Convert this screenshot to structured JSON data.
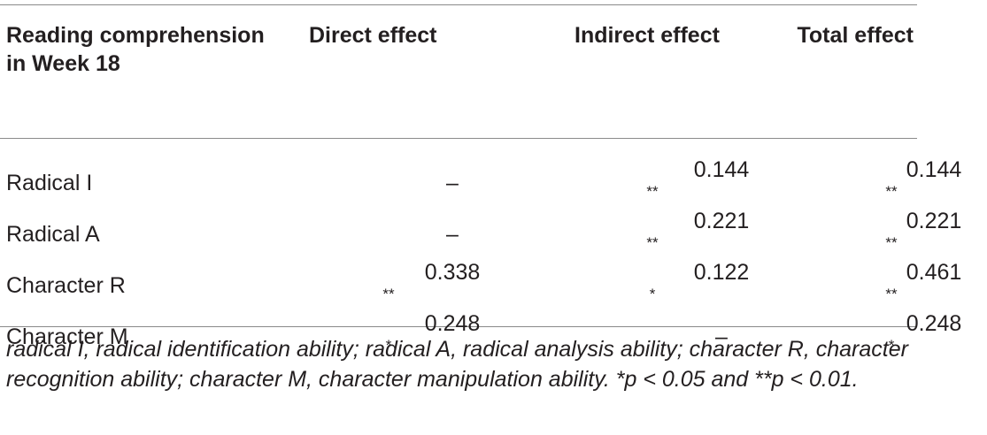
{
  "table": {
    "headers": [
      "Reading comprehension in Week 18",
      "Direct effect",
      "Indirect effect",
      "Total effect"
    ],
    "rows": [
      {
        "label": "Radical I",
        "direct": "–",
        "direct_sig": "",
        "indirect": "0.144",
        "indirect_sig": "**",
        "total": "0.144",
        "total_sig": "**"
      },
      {
        "label": "Radical A",
        "direct": "–",
        "direct_sig": "",
        "indirect": "0.221",
        "indirect_sig": "**",
        "total": "0.221",
        "total_sig": "**"
      },
      {
        "label": "Character R",
        "direct": "0.338",
        "direct_sig": "**",
        "indirect": "0.122",
        "indirect_sig": "*",
        "total": "0.461",
        "total_sig": "**"
      },
      {
        "label": "Character M",
        "direct": "0.248",
        "direct_sig": "*",
        "indirect": "–",
        "indirect_sig": "",
        "total": "0.248",
        "total_sig": "*"
      }
    ]
  },
  "note": "radical I, radical identification ability; radical A, radical analysis ability; character R, character recognition ability; character M, character manipulation ability. *p < 0.05 and **p < 0.01."
}
